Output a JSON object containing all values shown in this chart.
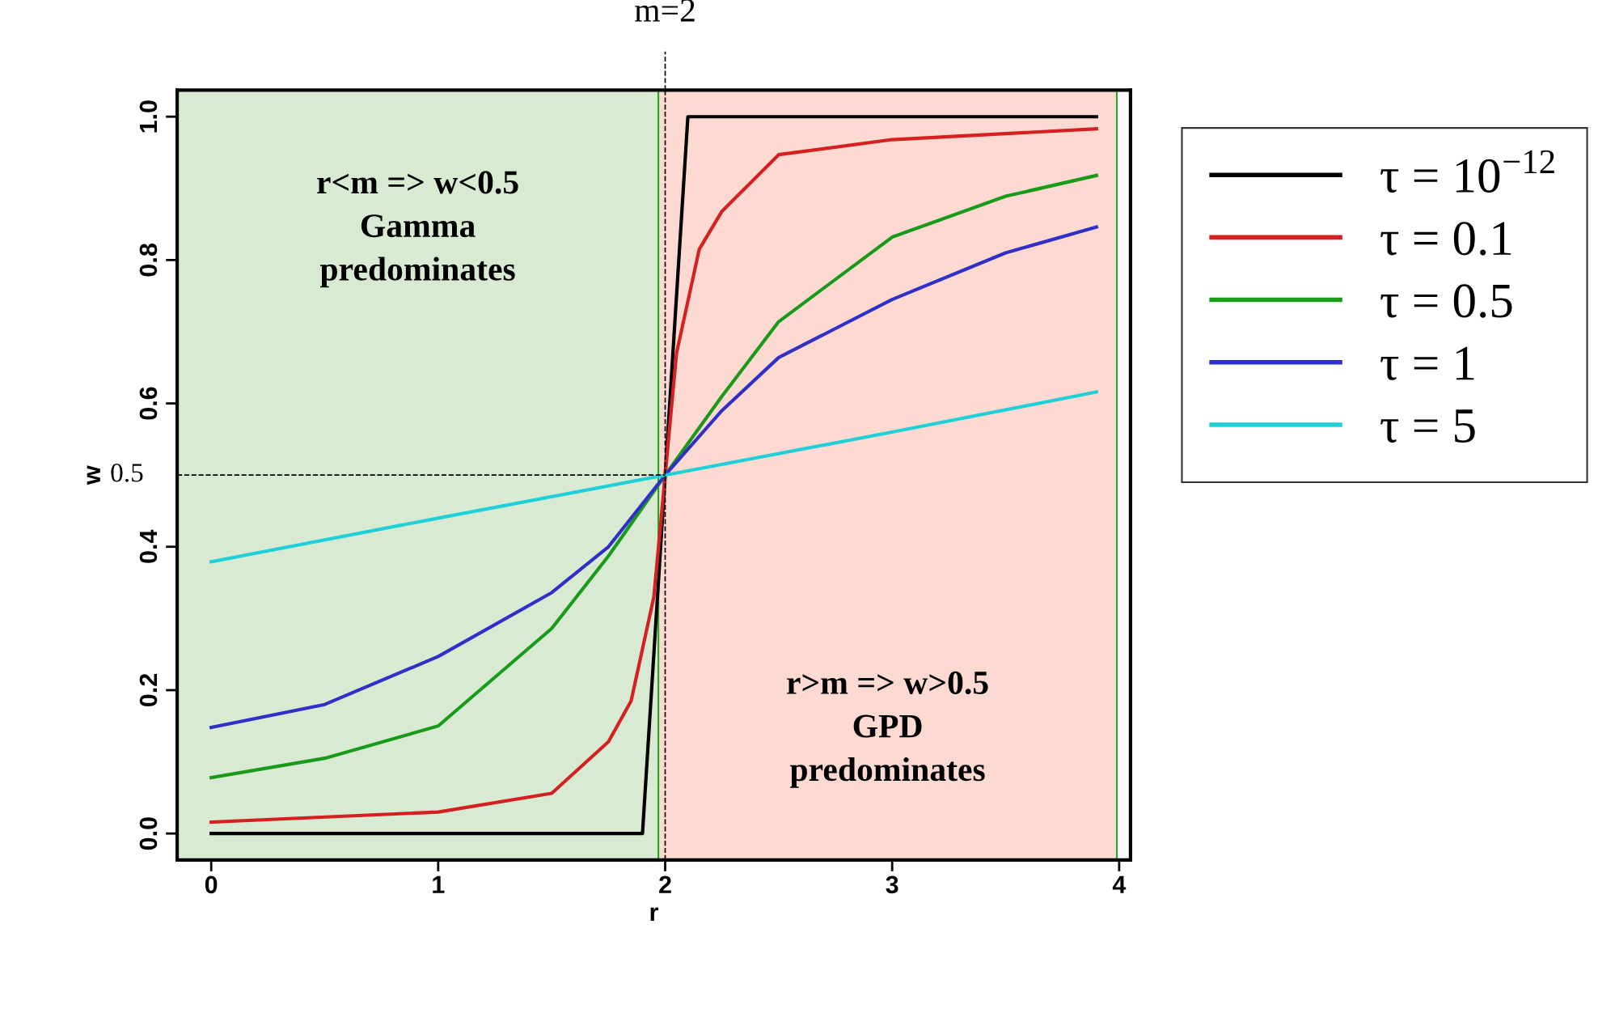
{
  "chart_data": {
    "type": "line",
    "xlabel": "r",
    "ylabel": "w",
    "xlim": [
      -0.15,
      4.05
    ],
    "ylim": [
      -0.037,
      1.037
    ],
    "xticks": [
      0,
      1,
      2,
      3,
      4
    ],
    "yticks": [
      {
        "value": 0,
        "label": "0.0"
      },
      {
        "value": 0.2,
        "label": "0.2"
      },
      {
        "value": 0.4,
        "label": "0.4"
      },
      {
        "value": 0.6,
        "label": "0.6"
      },
      {
        "value": 0.8,
        "label": "0.8"
      },
      {
        "value": 1,
        "label": "1.0"
      }
    ],
    "grid": false,
    "legend": "right",
    "line_style": "solid",
    "marker": "none",
    "series": [
      {
        "name": "τ = 10$^{−12}$",
        "color": "#000000",
        "x": [
          0,
          1.9,
          2.1,
          3.9
        ],
        "values": [
          0,
          0,
          1,
          1
        ]
      },
      {
        "name": "τ = 0.1",
        "color": "#d42020",
        "x": [
          0,
          1,
          1.5,
          1.75,
          1.85,
          1.95,
          2,
          2.05,
          2.15,
          2.25,
          2.5,
          3,
          3.9
        ],
        "values": [
          0.016,
          0.03,
          0.056,
          0.128,
          0.185,
          0.33,
          0.5,
          0.67,
          0.815,
          0.868,
          0.947,
          0.968,
          0.983
        ]
      },
      {
        "name": "τ = 0.5",
        "color": "#1a9a1a",
        "x": [
          0,
          0.5,
          1,
          1.5,
          1.75,
          2,
          2.25,
          2.5,
          3,
          3.5,
          3.9
        ],
        "values": [
          0.078,
          0.105,
          0.15,
          0.286,
          0.387,
          0.5,
          0.61,
          0.714,
          0.832,
          0.889,
          0.918
        ]
      },
      {
        "name": "τ = 1",
        "color": "#3030c8",
        "x": [
          0,
          0.5,
          1,
          1.5,
          1.75,
          2,
          2.25,
          2.5,
          3,
          3.5,
          3.9
        ],
        "values": [
          0.148,
          0.18,
          0.247,
          0.336,
          0.4,
          0.5,
          0.59,
          0.664,
          0.745,
          0.81,
          0.846
        ]
      },
      {
        "name": "τ = 5",
        "color": "#20d0d8",
        "x": [
          0,
          1,
          2,
          3,
          3.9
        ],
        "values": [
          0.379,
          0.44,
          0.5,
          0.56,
          0.616
        ]
      }
    ],
    "ref_lines": [
      {
        "axis": "x",
        "value": 2,
        "label": "m=2",
        "line_style": "dashed"
      },
      {
        "axis": "y",
        "value": 0.5,
        "label": "0.5",
        "line_style": "dashed"
      }
    ],
    "bands": [
      {
        "axis": "x",
        "from": -0.15,
        "to": 1.97,
        "label": "r<m => w<0.5\nGamma\npredominates",
        "color": "#d9ead3"
      },
      {
        "axis": "x",
        "from": 1.97,
        "to": 3.99,
        "label": "r>m => w>0.5\nGPD\npredominates",
        "color": "#fcd9d1"
      }
    ]
  }
}
